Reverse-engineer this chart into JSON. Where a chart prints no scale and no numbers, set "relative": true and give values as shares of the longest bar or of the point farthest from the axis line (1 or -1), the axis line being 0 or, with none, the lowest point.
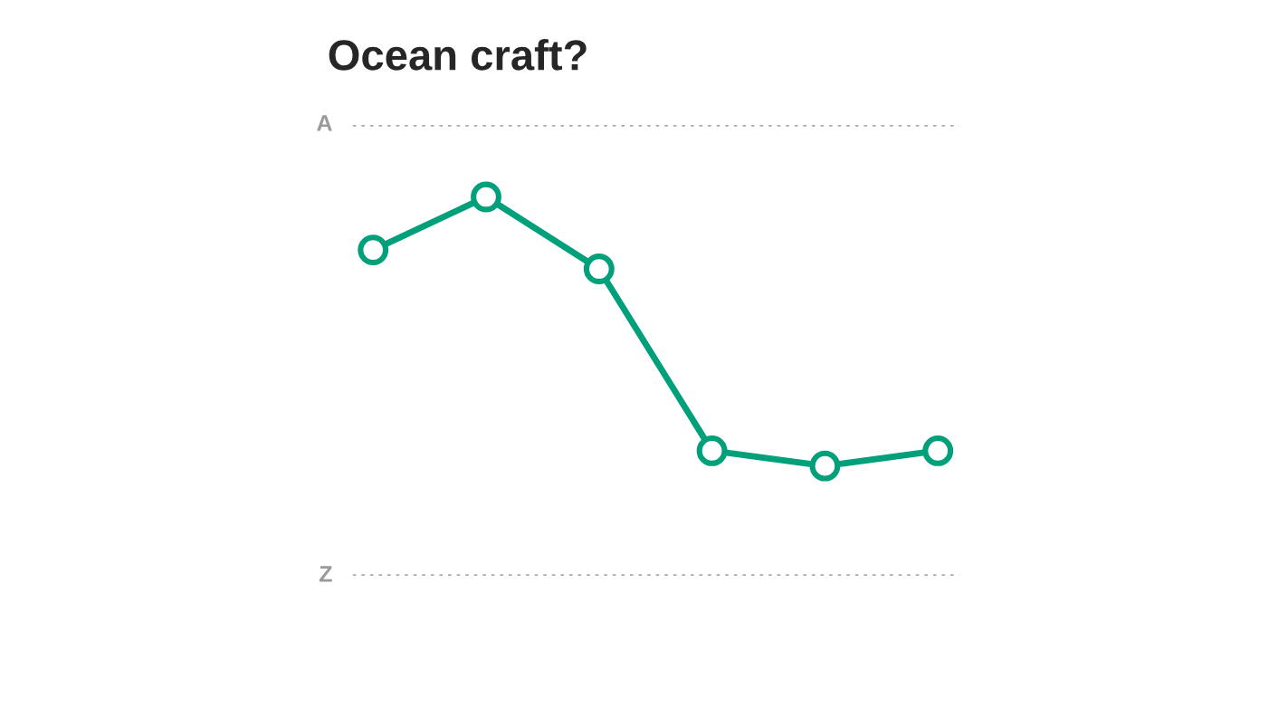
{
  "chart_data": {
    "type": "line",
    "title": "Ocean craft?",
    "categories": [
      null,
      null,
      null,
      null,
      null,
      null
    ],
    "relative": true,
    "series": [
      {
        "color": "#00a07a",
        "values": [
          0.86,
          1.0,
          0.81,
          0.33,
          0.29,
          0.33
        ]
      }
    ],
    "ref_lines": [
      {
        "axis": "y",
        "value": 1.19,
        "label": "A",
        "color": "#aaaaaa",
        "line_style": "dotted"
      },
      {
        "axis": "y",
        "value": 0,
        "label": "Z",
        "color": "#aaaaaa",
        "line_style": "dotted"
      }
    ],
    "marker": "circle",
    "line_style": "solid"
  }
}
